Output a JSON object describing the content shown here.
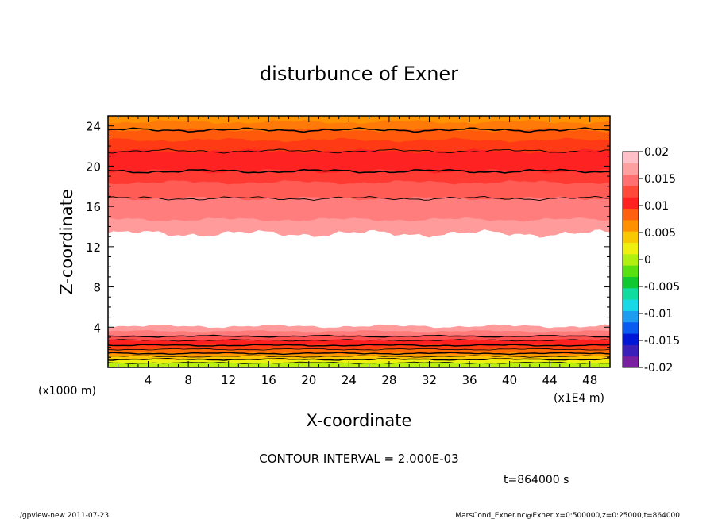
{
  "chart_data": {
    "type": "contour",
    "title": "disturbunce of Exner",
    "xlabel": "X-coordinate",
    "ylabel": "Z-coordinate",
    "x_unit_label": "(x1E4 m)",
    "y_unit_label": "(x1000 m)",
    "xlim": [
      0,
      50
    ],
    "ylim": [
      0,
      25
    ],
    "x_ticks": [
      4,
      8,
      12,
      16,
      20,
      24,
      28,
      32,
      36,
      40,
      44,
      48
    ],
    "y_ticks": [
      4,
      8,
      12,
      16,
      20,
      24
    ],
    "contour_interval_text": "CONTOUR INTERVAL = 2.000E-03",
    "time_text": "t=864000 s",
    "colorbar": {
      "labels": [
        "0.02",
        "0.015",
        "0.01",
        "0.005",
        "0",
        "-0.005",
        "-0.01",
        "-0.015",
        "-0.02"
      ],
      "colors": [
        "#7b1fa2",
        "#3a1fb8",
        "#0018d6",
        "#0a5cf0",
        "#1e9cf0",
        "#18d8e8",
        "#10dca0",
        "#10c830",
        "#58e010",
        "#b0f010",
        "#f0f010",
        "#f8c800",
        "#ff9000",
        "#ff6010",
        "#ff2020",
        "#ff4a3a",
        "#ff7070",
        "#ffa0a0",
        "#ffc0c8"
      ]
    },
    "bands_top": [
      {
        "z0": 13.3,
        "color": "#ff9b9b"
      },
      {
        "z0": 14.7,
        "color": "#ff7d7d"
      },
      {
        "z0": 16.8,
        "color": "#ff5c56"
      },
      {
        "z0": 18.4,
        "color": "#ff3a32"
      },
      {
        "z0": 19.5,
        "color": "#ff2222"
      },
      {
        "z0": 21.5,
        "color": "#ff3a14"
      },
      {
        "z0": 22.6,
        "color": "#ff5a0c"
      },
      {
        "z0": 23.6,
        "color": "#ff7a08"
      },
      {
        "z0": 24.4,
        "color": "#ff9400"
      }
    ],
    "bands_bottom": [
      {
        "z1": 4.1,
        "color": "#ff9b9b"
      },
      {
        "z1": 3.6,
        "color": "#ff7a7a"
      },
      {
        "z1": 3.1,
        "color": "#ff5050"
      },
      {
        "z1": 2.7,
        "color": "#ff2020"
      },
      {
        "z1": 2.2,
        "color": "#ff4010"
      },
      {
        "z1": 1.8,
        "color": "#ff6a00"
      },
      {
        "z1": 1.4,
        "color": "#ff9a00"
      },
      {
        "z1": 1.1,
        "color": "#ffc800"
      },
      {
        "z1": 0.8,
        "color": "#f0f010"
      },
      {
        "z1": 0.45,
        "color": "#b8f010"
      }
    ],
    "contour_levels_top": [
      16.8,
      19.5,
      21.5,
      23.6
    ],
    "contour_levels_bottom": [
      0.45,
      0.8,
      1.1,
      1.4,
      1.8,
      2.2,
      2.7,
      3.1
    ]
  },
  "footer": {
    "left": "./gpview-new  2011-07-23",
    "right": "MarsCond_Exner.nc@Exner,x=0:500000,z=0:25000,t=864000"
  }
}
